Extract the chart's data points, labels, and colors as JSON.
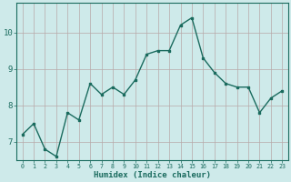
{
  "x": [
    0,
    1,
    2,
    3,
    4,
    5,
    6,
    7,
    8,
    9,
    10,
    11,
    12,
    13,
    14,
    15,
    16,
    17,
    18,
    19,
    20,
    21,
    22,
    23
  ],
  "y": [
    7.2,
    7.5,
    6.8,
    6.6,
    7.8,
    7.6,
    8.6,
    8.3,
    8.5,
    8.3,
    8.7,
    9.4,
    9.5,
    9.5,
    10.2,
    10.4,
    9.3,
    8.9,
    8.6,
    8.5,
    8.5,
    7.8,
    8.2,
    8.4
  ],
  "xlabel": "Humidex (Indice chaleur)",
  "line_color": "#1a6b5e",
  "bg_color": "#ceeaea",
  "plot_bg_color": "#ceeaea",
  "grid_color_h": "#b8a8a8",
  "grid_color_v": "#b8a8a8",
  "ylim": [
    6.5,
    10.8
  ],
  "xlim": [
    -0.5,
    23.5
  ],
  "yticks": [
    7,
    8,
    9,
    10
  ],
  "xtick_labels": [
    "0",
    "1",
    "2",
    "3",
    "4",
    "5",
    "6",
    "7",
    "8",
    "9",
    "10",
    "11",
    "12",
    "13",
    "14",
    "15",
    "16",
    "17",
    "18",
    "19",
    "20",
    "21",
    "22",
    "23"
  ]
}
